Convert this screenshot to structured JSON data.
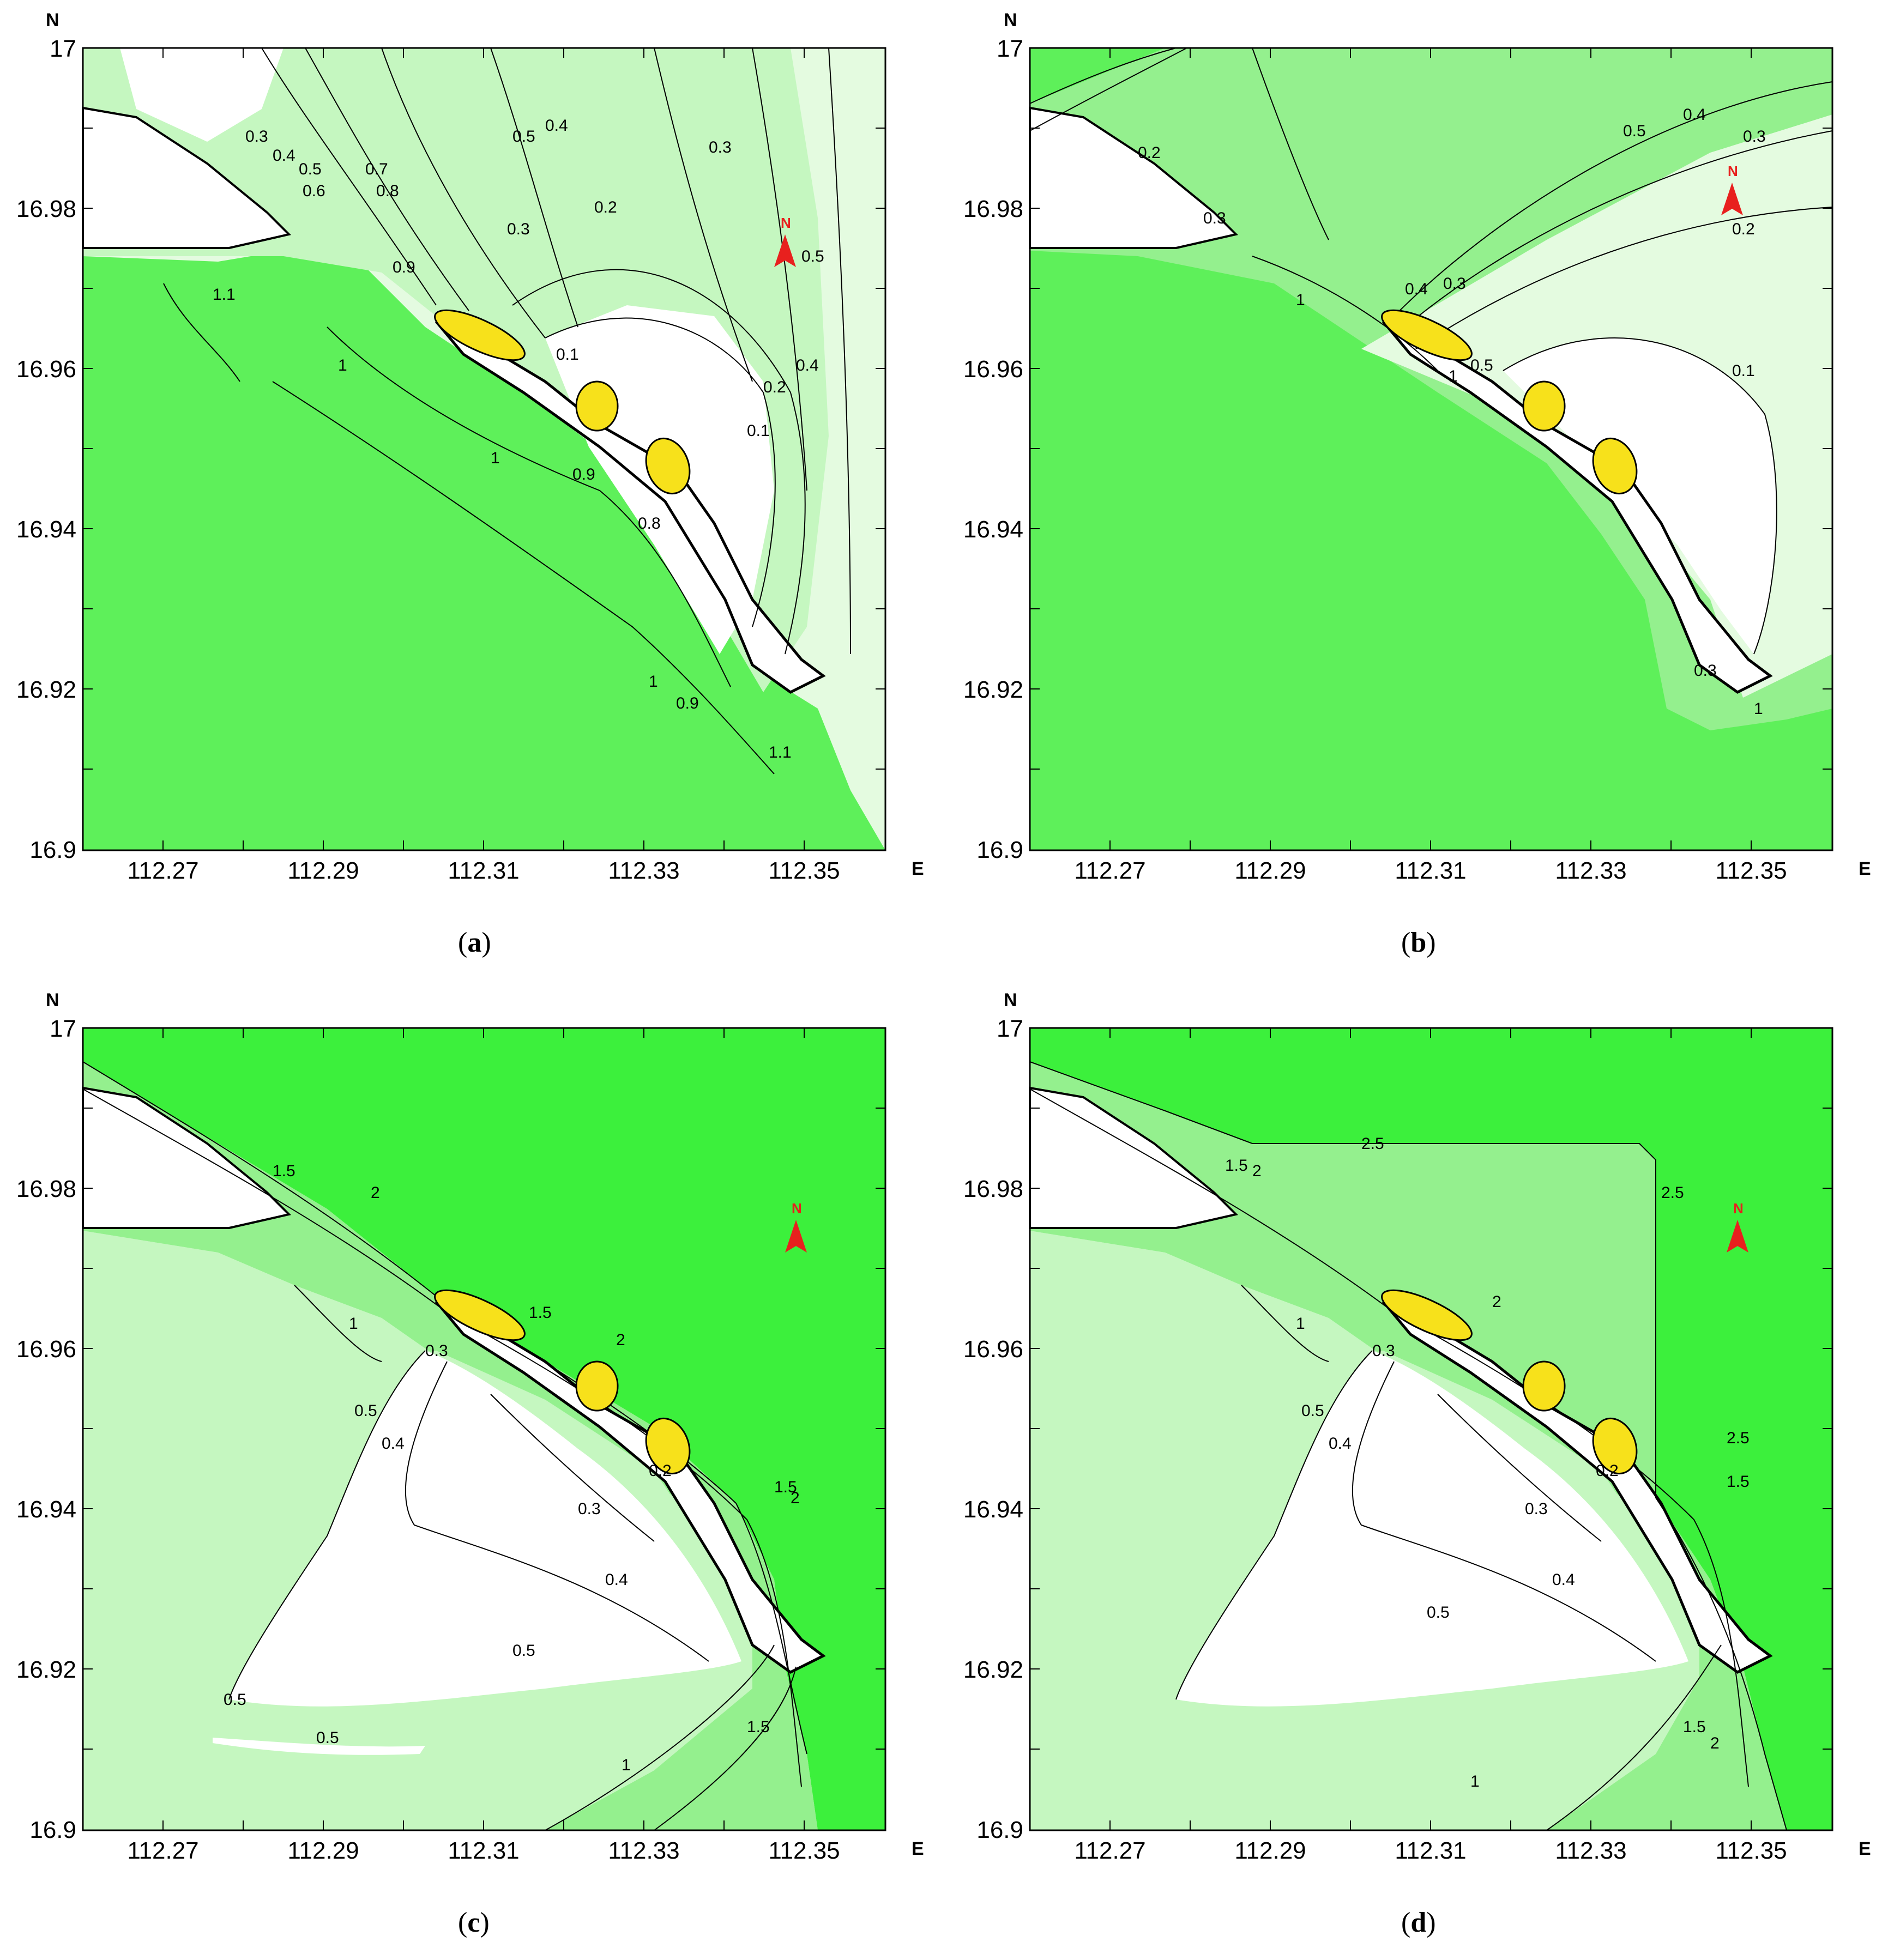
{
  "panels": [
    {
      "id": "a",
      "caption_letter": "a",
      "north_letter": "N",
      "east_letter": "E",
      "y_ticks": [
        "17",
        "16.98",
        "16.96",
        "16.94",
        "16.92",
        "16.9"
      ],
      "x_ticks": [
        "112.27",
        "112.29",
        "112.31",
        "112.33",
        "112.35"
      ],
      "contour_labels": [
        "0.3",
        "0.4",
        "0.5",
        "0.6",
        "0.7",
        "0.8",
        "0.9",
        "1",
        "1.1",
        "0.5",
        "0.4",
        "0.3",
        "0.2",
        "0.1",
        "0.3",
        "0.4",
        "0.5",
        "0.2",
        "0.1",
        "1",
        "0.9",
        "0.8",
        "0.9",
        "1",
        "1.1"
      ]
    },
    {
      "id": "b",
      "caption_letter": "b",
      "north_letter": "N",
      "east_letter": "E",
      "y_ticks": [
        "17",
        "16.98",
        "16.96",
        "16.94",
        "16.92",
        "16.9"
      ],
      "x_ticks": [
        "112.27",
        "112.29",
        "112.31",
        "112.33",
        "112.35"
      ],
      "contour_labels": [
        "0.2",
        "0.3",
        "1",
        "0.4",
        "0.3",
        "0.5",
        "0.4",
        "0.3",
        "0.2",
        "0.1",
        "1",
        "0.5",
        "0.3",
        "1"
      ]
    },
    {
      "id": "c",
      "caption_letter": "c",
      "north_letter": "N",
      "east_letter": "E",
      "y_ticks": [
        "17",
        "16.98",
        "16.96",
        "16.94",
        "16.92",
        "16.9"
      ],
      "x_ticks": [
        "112.27",
        "112.29",
        "112.31",
        "112.33",
        "112.35"
      ],
      "contour_labels": [
        "1.5",
        "2",
        "1",
        "1.5",
        "2",
        "0.3",
        "0.5",
        "0.4",
        "0.3",
        "0.4",
        "0.5",
        "0.5",
        "0.5",
        "1",
        "1.5",
        "1.5",
        "2",
        "0.2"
      ]
    },
    {
      "id": "d",
      "caption_letter": "d",
      "north_letter": "N",
      "east_letter": "E",
      "y_ticks": [
        "17",
        "16.98",
        "16.96",
        "16.94",
        "16.92",
        "16.9"
      ],
      "x_ticks": [
        "112.27",
        "112.29",
        "112.31",
        "112.33",
        "112.35"
      ],
      "contour_labels": [
        "2.5",
        "2.5",
        "1.5",
        "2",
        "1",
        "2",
        "0.3",
        "0.5",
        "0.4",
        "0.3",
        "0.4",
        "0.5",
        "2.5",
        "1.5",
        "1",
        "1.5",
        "2",
        "0.2"
      ]
    }
  ],
  "colors": {
    "deep_green": "#5ef05a",
    "mid_green": "#94f08e",
    "light_green": "#c5f7c0",
    "pale_green": "#e4fbe0",
    "bright_green": "#3cf03c",
    "island_yellow": "#f7e11b",
    "north_arrow": "#e8201e"
  }
}
